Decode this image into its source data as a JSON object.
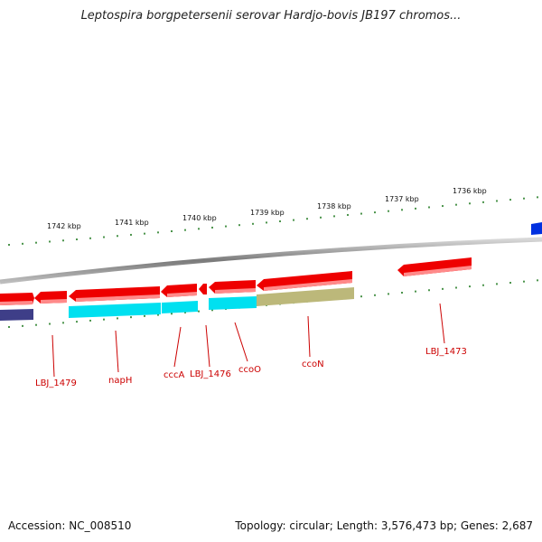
{
  "title": "Leptospira borgpetersenii serovar Hardjo-bovis JB197 chromos...",
  "footer": {
    "accession": "Accession: NC_008510",
    "topology": "Topology: circular; Length: 3,576,473 bp; Genes: 2,687"
  },
  "colors": {
    "backbone": "#8a8a8a",
    "tick": "#1f7a1f",
    "label": "#cc0000",
    "gene_red": "#ee0000",
    "gene_cyan": "#00e0f0",
    "gene_olive": "#bcb87a",
    "gene_navy": "#3e3e88",
    "gene_blue": "#0030e0"
  },
  "kbp_labels": [
    "1742 kbp",
    "1741 kbp",
    "1740 kbp",
    "1739 kbp",
    "1738 kbp",
    "1737 kbp",
    "1736 kbp"
  ],
  "genes": [
    {
      "name": "LBJ_1479"
    },
    {
      "name": "napH"
    },
    {
      "name": "cccA"
    },
    {
      "name": "LBJ_1476"
    },
    {
      "name": "ccoO"
    },
    {
      "name": "ccoN"
    },
    {
      "name": "LBJ_1473"
    }
  ]
}
